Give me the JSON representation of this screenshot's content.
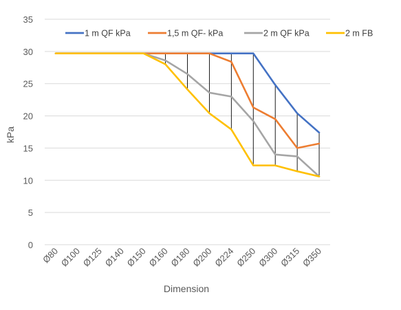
{
  "chart_data": {
    "type": "line",
    "title": "",
    "xlabel": "Dimension",
    "ylabel": "kPa",
    "ylim": [
      0,
      35
    ],
    "yticks": [
      0,
      5,
      10,
      15,
      20,
      25,
      30,
      35
    ],
    "grid": "horizontal",
    "legend": "top",
    "drop_lines": true,
    "categories": [
      "Ø80",
      "Ø100",
      "Ø125",
      "Ø140",
      "Ø150",
      "Ø160",
      "Ø180",
      "Ø200",
      "Ø224",
      "Ø250",
      "Ø300",
      "Ø315",
      "Ø350"
    ],
    "series": [
      {
        "name": "1 m QF kPa",
        "color": "#4472C4",
        "values": [
          29.7,
          29.7,
          29.7,
          29.7,
          29.7,
          29.7,
          29.7,
          29.7,
          29.7,
          29.7,
          24.8,
          20.4,
          17.4
        ]
      },
      {
        "name": "1,5 m QF- kPa",
        "color": "#ED7D31",
        "values": [
          29.7,
          29.7,
          29.7,
          29.7,
          29.7,
          29.7,
          29.7,
          29.7,
          28.4,
          21.3,
          19.5,
          15.0,
          15.7
        ]
      },
      {
        "name": "2 m QF kPa",
        "color": "#A5A5A5",
        "values": [
          29.7,
          29.7,
          29.7,
          29.7,
          29.7,
          28.6,
          26.5,
          23.6,
          23.0,
          19.2,
          14.0,
          13.7,
          10.6
        ]
      },
      {
        "name": "2 m FB",
        "color": "#FFC000",
        "values": [
          29.7,
          29.7,
          29.7,
          29.7,
          29.7,
          28.0,
          24.1,
          20.4,
          17.9,
          12.3,
          12.3,
          11.4,
          10.6
        ]
      }
    ]
  }
}
